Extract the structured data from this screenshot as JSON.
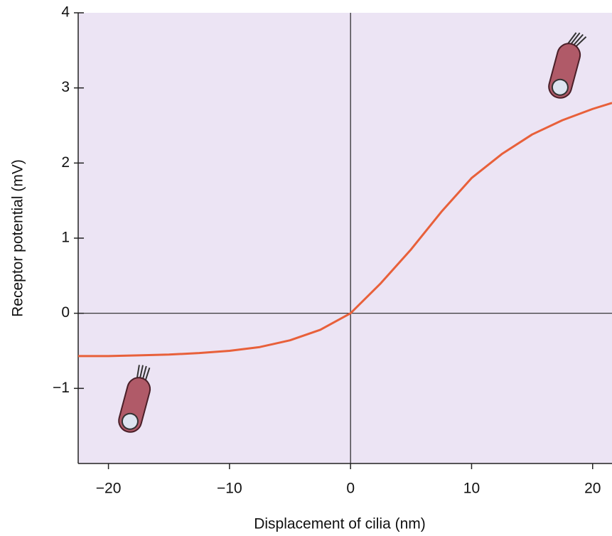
{
  "chart_data": {
    "type": "line",
    "xlabel": "Displacement of cilia (nm)",
    "ylabel": "Receptor potential (mV)",
    "xlim": [
      -22.5,
      21.6
    ],
    "ylim": [
      -2,
      4
    ],
    "xticks": [
      {
        "value": -20,
        "label": "−20"
      },
      {
        "value": -10,
        "label": "−10"
      },
      0,
      10,
      20
    ],
    "yticks": [
      {
        "value": -1,
        "label": "−1"
      },
      0,
      1,
      2,
      3,
      4
    ],
    "series": [
      {
        "color": "#e8603a",
        "x": [
          -22.5,
          -20,
          -17.5,
          -15,
          -12.5,
          -10,
          -7.5,
          -5,
          -2.5,
          0,
          2.5,
          5,
          7.5,
          10,
          12.5,
          15,
          17.5,
          20,
          21.6
        ],
        "values": [
          -0.57,
          -0.57,
          -0.56,
          -0.55,
          -0.53,
          -0.5,
          -0.45,
          -0.36,
          -0.22,
          0,
          0.4,
          0.85,
          1.35,
          1.8,
          2.12,
          2.38,
          2.57,
          2.72,
          2.8
        ]
      }
    ]
  }
}
